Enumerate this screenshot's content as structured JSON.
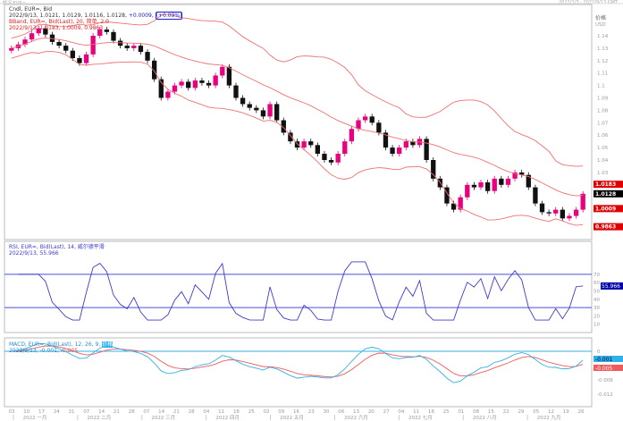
{
  "header": {
    "left": "概况 EUR=",
    "right": "2022/1/3 - 2022/9/13 GMT"
  },
  "price_legend": {
    "line1": "Cndl, EUR=, Bid",
    "line2": "2022/9/13, 1.0121, 1.0129, 1.0116, 1.0128,",
    "change": "+0.0009,",
    "change_pct": "(+0.09%)",
    "line3": "BBand, EUR=, Bid(Last), 20, 简单, 2.0",
    "line4": "2022/9/13, 1.0183, 1.0009, 0.9863"
  },
  "rsi_legend": {
    "line1": "RSI, EUR=, Bid(Last), 14, 威尔德平滑",
    "line2": "2022/9/13, 55.966"
  },
  "macd_legend": {
    "line1": "MACD, EUR=, Bid(Last), 12, 26, 9,",
    "tag": "价格",
    "line2": "2022/9/13, -0.001,",
    "signal": "-0.005"
  },
  "price_axis": {
    "title": "价格",
    "unit": "USD",
    "ticks": [
      "1.14",
      "1.13",
      "1.12",
      "1.11",
      "1.1",
      "1.09",
      "1.08",
      "1.07",
      "1.06",
      "1.05",
      "1.04",
      "1.03"
    ],
    "labels": {
      "upper": "1.0183",
      "last": "1.0128",
      "mid": "1.0009",
      "lower": "0.9863"
    }
  },
  "rsi_axis": {
    "ticks": [
      "70",
      "60",
      "50",
      "40",
      "30",
      "20",
      "10"
    ],
    "last": "55.966"
  },
  "macd_axis": {
    "ticks": [
      "0",
      "-0.008",
      "-0.012"
    ],
    "macd": "-0.001",
    "signal": "-0.005"
  },
  "date_axis": {
    "days": [
      "03",
      "10",
      "17",
      "24",
      "31",
      "07",
      "14",
      "21",
      "28",
      "07",
      "14",
      "21",
      "28",
      "04",
      "11",
      "18",
      "25",
      "02",
      "09",
      "16",
      "23",
      "30",
      "06",
      "13",
      "20",
      "27",
      "04",
      "11",
      "18",
      "25",
      "01",
      "08",
      "15",
      "22",
      "29",
      "05",
      "12",
      "19",
      "26"
    ],
    "months": [
      "2022 一月",
      "2022 二月",
      "2022 三月",
      "2022 四月",
      "2022 五月",
      "2022 六月",
      "2022 七月",
      "2022 八月",
      "2022 九月"
    ]
  },
  "colors": {
    "up": "#e8007f",
    "down": "#111111",
    "bband": "#f07070",
    "rsi": "#3b3bd0",
    "macd": "#30b0e8",
    "signal": "#f05a5a",
    "last_bg": "#000000",
    "band_label_bg": "#e00000",
    "rsi_label_bg": "#0000aa"
  },
  "chart_data": [
    {
      "type": "candlestick",
      "title": "Cndl, EUR=, Bid",
      "ylabel": "USD",
      "ylim": [
        0.975,
        1.165
      ],
      "close": [
        1.13,
        1.133,
        1.137,
        1.142,
        1.146,
        1.141,
        1.135,
        1.132,
        1.128,
        1.122,
        1.118,
        1.125,
        1.14,
        1.145,
        1.143,
        1.136,
        1.132,
        1.13,
        1.132,
        1.127,
        1.12,
        1.105,
        1.09,
        1.095,
        1.1,
        1.103,
        1.098,
        1.104,
        1.102,
        1.1,
        1.108,
        1.115,
        1.1,
        1.09,
        1.085,
        1.082,
        1.08,
        1.075,
        1.085,
        1.072,
        1.062,
        1.055,
        1.05,
        1.055,
        1.052,
        1.045,
        1.04,
        1.038,
        1.045,
        1.055,
        1.065,
        1.072,
        1.075,
        1.07,
        1.062,
        1.05,
        1.045,
        1.05,
        1.055,
        1.052,
        1.057,
        1.04,
        1.025,
        1.018,
        1.005,
        1.0,
        1.01,
        1.02,
        1.018,
        1.022,
        1.015,
        1.025,
        1.02,
        1.025,
        1.03,
        1.028,
        1.018,
        1.005,
        0.998,
        0.997,
        1.0,
        0.993,
        0.995,
        1.0,
        1.0128
      ]
    },
    {
      "type": "line",
      "title": "RSI, EUR=, Bid(Last), 14",
      "ylim": [
        0,
        100
      ],
      "levels": [
        70,
        30
      ]
    },
    {
      "type": "line",
      "title": "MACD, EUR=, Bid(Last), 12, 26, 9",
      "ylim": [
        -0.0148,
        0.0035
      ]
    }
  ]
}
